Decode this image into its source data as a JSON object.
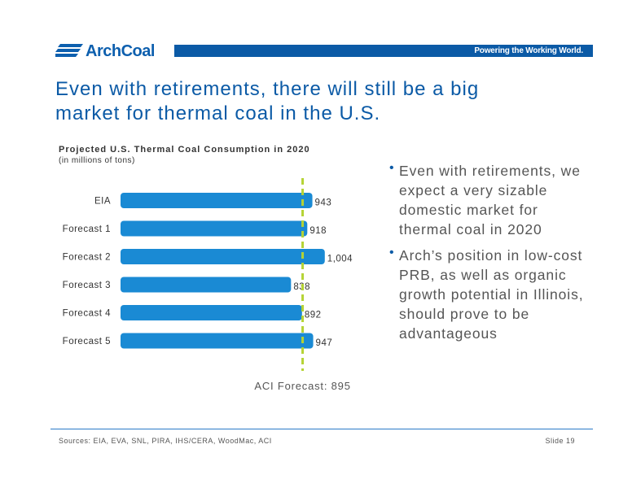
{
  "brand": {
    "name": "ArchCoal",
    "tagline": "Powering the Working World."
  },
  "slide": {
    "title": "Even with retirements, there will still be a big market for thermal coal in the U.S.",
    "sources": "Sources: EIA, EVA, SNL, PIRA, IHS/CERA, WoodMac, ACI",
    "slide_number": "Slide 19"
  },
  "bullets": [
    "Even with retirements, we expect a very sizable domestic market for thermal coal in 2020",
    "Arch’s position in low-cost PRB, as well as organic growth potential in Illinois, should prove to be advantageous"
  ],
  "colors": {
    "brand_blue": "#0b5aa6",
    "bar": "#1a8ad4",
    "reference_line": "#b5d334"
  },
  "chart_data": {
    "type": "bar",
    "orientation": "horizontal",
    "title": "Projected U.S. Thermal Coal Consumption in 2020",
    "subtitle": "(in millions of tons)",
    "categories": [
      "EIA",
      "Forecast 1",
      "Forecast 2",
      "Forecast 3",
      "Forecast 4",
      "Forecast 5"
    ],
    "values": [
      943,
      918,
      1004,
      838,
      892,
      947
    ],
    "value_labels": [
      "943",
      "918",
      "1,004",
      "838",
      "892",
      "947"
    ],
    "reference_line": {
      "value": 895,
      "label": "ACI Forecast: 895",
      "style": "dashed"
    },
    "grid": false,
    "legend": "none"
  }
}
